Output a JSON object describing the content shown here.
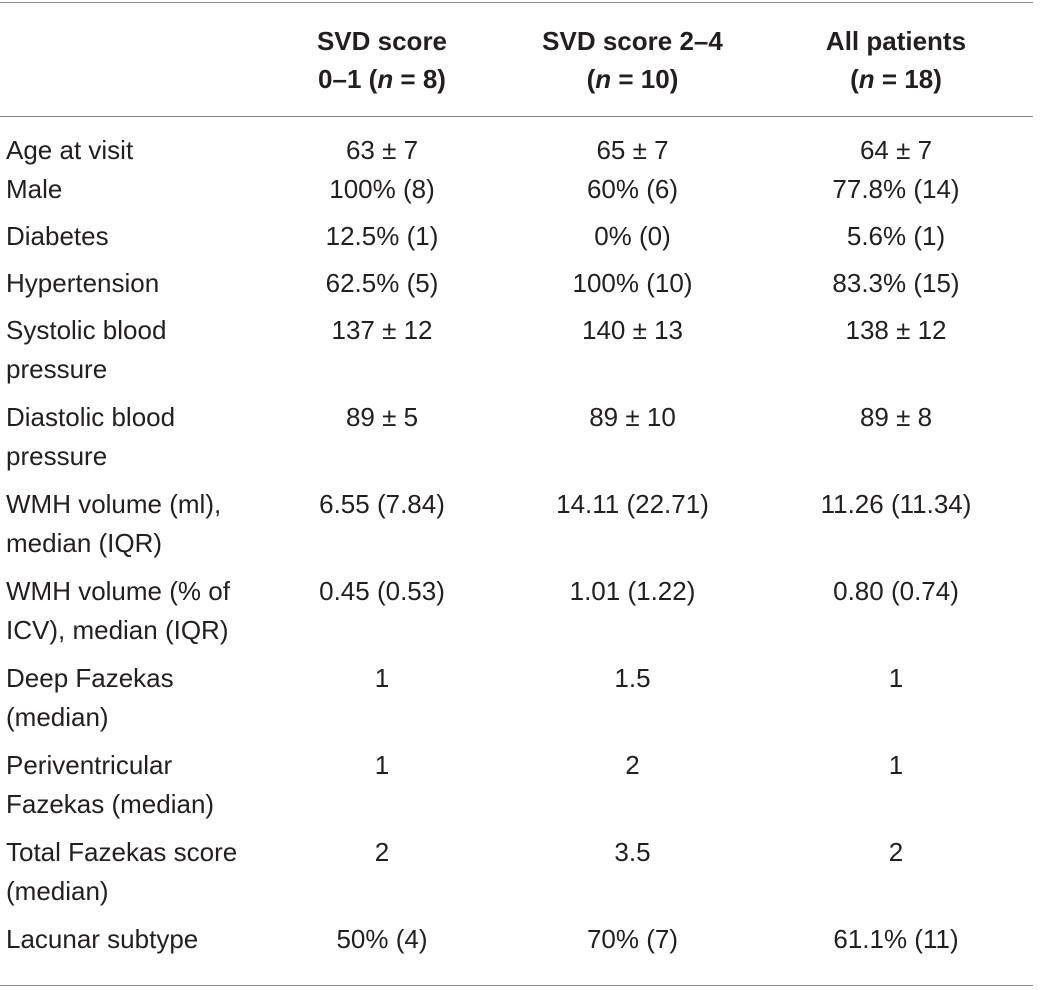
{
  "table": {
    "headers": [
      {
        "line1": "",
        "line2_pre": "",
        "line2_n": "",
        "line2_post": ""
      },
      {
        "line1": "SVD score",
        "line2_pre": "0–1 (",
        "line2_n": "n",
        "line2_post": " = 8)"
      },
      {
        "line1": "SVD score 2–4",
        "line2_pre": "(",
        "line2_n": "n",
        "line2_post": " = 10)"
      },
      {
        "line1": "All patients",
        "line2_pre": "(",
        "line2_n": "n",
        "line2_post": " = 18)"
      }
    ],
    "rows": [
      {
        "label": "Age at visit",
        "svd01": "63 ± 7",
        "svd24": "65 ± 7",
        "all": "64 ± 7"
      },
      {
        "label": "Male",
        "svd01": "100% (8)",
        "svd24": "60% (6)",
        "all": "77.8% (14)"
      },
      {
        "label": "Diabetes",
        "svd01": "12.5% (1)",
        "svd24": "0% (0)",
        "all": "5.6% (1)"
      },
      {
        "label": "Hypertension",
        "svd01": "62.5% (5)",
        "svd24": "100% (10)",
        "all": "83.3% (15)"
      },
      {
        "label_l1": "Systolic blood",
        "label_l2": "pressure",
        "svd01": "137 ± 12",
        "svd24": "140 ± 13",
        "all": "138 ± 12"
      },
      {
        "label_l1": "Diastolic blood",
        "label_l2": "pressure",
        "svd01": "89 ± 5",
        "svd24": "89 ± 10",
        "all": "89 ± 8"
      },
      {
        "label_l1": "WMH volume (ml),",
        "label_l2": "median (IQR)",
        "svd01": "6.55 (7.84)",
        "svd24": "14.11 (22.71)",
        "all": "11.26 (11.34)"
      },
      {
        "label_l1": "WMH volume (% of",
        "label_l2": "ICV), median (IQR)",
        "svd01": "0.45 (0.53)",
        "svd24": "1.01 (1.22)",
        "all": "0.80 (0.74)"
      },
      {
        "label_l1": "Deep Fazekas",
        "label_l2": "(median)",
        "svd01": "1",
        "svd24": "1.5",
        "all": "1"
      },
      {
        "label_l1": "Periventricular",
        "label_l2": "Fazekas (median)",
        "svd01": "1",
        "svd24": "2",
        "all": "1"
      },
      {
        "label_l1": "Total Fazekas score",
        "label_l2": "(median)",
        "svd01": "2",
        "svd24": "3.5",
        "all": "2"
      },
      {
        "label": "Lacunar subtype",
        "svd01": "50% (4)",
        "svd24": "70% (7)",
        "all": "61.1% (11)"
      }
    ]
  }
}
